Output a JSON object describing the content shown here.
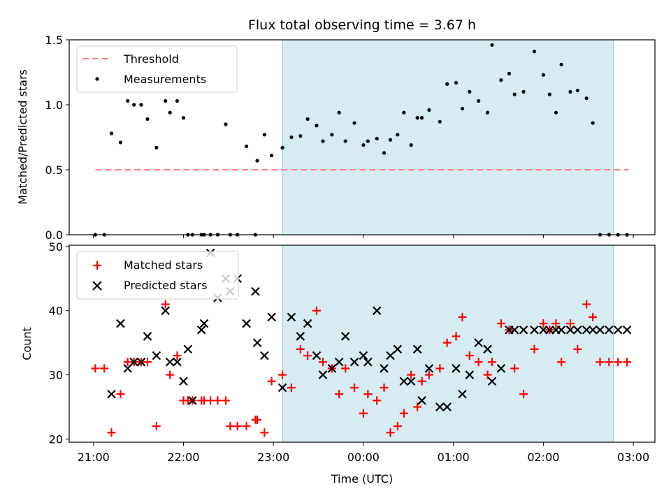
{
  "chart_data": [
    {
      "type": "scatter",
      "title": "Flux total observing time = 3.67 h",
      "ylabel": "Matched/Predicted stars",
      "xlabel": "",
      "xlim": [
        -0.27,
        6.24
      ],
      "ylim": [
        0.0,
        1.5
      ],
      "yticks": [
        0.0,
        0.5,
        1.0,
        1.5
      ],
      "ytick_labels": [
        "0.0",
        "0.5",
        "1.0",
        "1.5"
      ],
      "shaded_span": [
        2.1,
        5.78
      ],
      "legend_position": "upper-left",
      "threshold": {
        "name": "Threshold",
        "value": 0.5,
        "x_range": [
          0.02,
          5.95
        ],
        "color": "#ff7f7f"
      },
      "series": [
        {
          "name": "Measurements",
          "color": "#000000",
          "x": [
            0.02,
            0.12,
            0.2,
            0.3,
            0.38,
            0.45,
            0.53,
            0.6,
            0.7,
            0.8,
            0.85,
            0.93,
            1.0,
            1.05,
            1.1,
            1.2,
            1.23,
            1.3,
            1.38,
            1.47,
            1.52,
            1.6,
            1.7,
            1.8,
            1.82,
            1.9,
            1.98,
            2.1,
            2.2,
            2.3,
            2.38,
            2.48,
            2.55,
            2.65,
            2.73,
            2.8,
            2.9,
            3.0,
            3.05,
            3.15,
            3.23,
            3.3,
            3.38,
            3.45,
            3.53,
            3.6,
            3.65,
            3.73,
            3.85,
            3.93,
            4.03,
            4.1,
            4.18,
            4.28,
            4.38,
            4.43,
            4.53,
            4.62,
            4.68,
            4.78,
            4.9,
            5.0,
            5.07,
            5.14,
            5.2,
            5.3,
            5.38,
            5.48,
            5.55,
            5.63,
            5.73,
            5.83,
            5.93
          ],
          "y": [
            0,
            0,
            0.78,
            0.71,
            1.03,
            1.0,
            1.0,
            0.89,
            0.67,
            1.03,
            0.94,
            1.03,
            0.9,
            0,
            0,
            0,
            0,
            0,
            0,
            0.85,
            0,
            0,
            0.68,
            0,
            0.57,
            0.77,
            0.61,
            0.67,
            0.75,
            0.76,
            0.89,
            0.84,
            0.72,
            0.77,
            0.94,
            0.72,
            0.86,
            0.69,
            0.72,
            0.74,
            0.63,
            0.73,
            0.77,
            0.94,
            0.69,
            0.9,
            0.9,
            0.96,
            0.87,
            1.16,
            1.17,
            0.97,
            1.1,
            1.03,
            0.94,
            1.46,
            1.19,
            1.24,
            1.08,
            1.1,
            1.41,
            1.23,
            1.08,
            0.94,
            1.31,
            1.1,
            1.11,
            1.05,
            0.86,
            0,
            0,
            0,
            0
          ]
        }
      ]
    },
    {
      "type": "scatter",
      "title": "",
      "ylabel": "Count",
      "xlabel": "Time (UTC)",
      "xlim": [
        -0.27,
        6.24
      ],
      "ylim": [
        19.5,
        50.2
      ],
      "yticks": [
        20,
        30,
        40,
        50
      ],
      "ytick_labels": [
        "20",
        "30",
        "40",
        "50"
      ],
      "xticks": [
        0,
        1,
        2,
        3,
        4,
        5,
        6
      ],
      "xtick_labels": [
        "21:00",
        "22:00",
        "23:00",
        "00:00",
        "01:00",
        "02:00",
        "03:00"
      ],
      "shaded_span": [
        2.1,
        5.78
      ],
      "legend_position": "upper-left",
      "series": [
        {
          "name": "Matched stars",
          "color": "#ff0000",
          "marker": "plus",
          "x": [
            0.02,
            0.12,
            0.2,
            0.3,
            0.38,
            0.45,
            0.53,
            0.6,
            0.7,
            0.8,
            0.85,
            0.93,
            1.0,
            1.05,
            1.1,
            1.2,
            1.23,
            1.3,
            1.38,
            1.47,
            1.52,
            1.6,
            1.7,
            1.8,
            1.82,
            1.9,
            1.98,
            2.1,
            2.2,
            2.3,
            2.38,
            2.48,
            2.55,
            2.65,
            2.73,
            2.8,
            2.9,
            3.0,
            3.05,
            3.15,
            3.23,
            3.3,
            3.38,
            3.45,
            3.53,
            3.6,
            3.65,
            3.73,
            3.85,
            3.93,
            4.03,
            4.1,
            4.18,
            4.28,
            4.38,
            4.43,
            4.53,
            4.62,
            4.68,
            4.78,
            4.9,
            5.0,
            5.07,
            5.14,
            5.2,
            5.3,
            5.38,
            5.48,
            5.55,
            5.63,
            5.73,
            5.83,
            5.93
          ],
          "y": [
            31,
            31,
            21,
            27,
            32,
            32,
            32,
            32,
            22,
            41,
            30,
            33,
            26,
            26,
            26,
            26,
            26,
            26,
            26,
            26,
            22,
            22,
            22,
            23,
            23,
            21,
            29,
            30,
            28,
            34,
            33,
            40,
            32,
            31,
            27,
            31,
            28,
            24,
            27,
            26,
            28,
            21,
            22,
            24,
            30,
            25,
            29,
            30,
            31,
            35,
            36,
            39,
            33,
            32,
            30,
            32,
            38,
            37,
            31,
            27,
            34,
            38,
            37,
            38,
            32,
            38,
            34,
            41,
            39,
            32,
            32,
            32,
            32
          ]
        },
        {
          "name": "Predicted stars",
          "color": "#000000",
          "marker": "x",
          "x": [
            0.2,
            0.3,
            0.38,
            0.45,
            0.53,
            0.6,
            0.7,
            0.8,
            0.85,
            0.93,
            1.0,
            1.05,
            1.1,
            1.2,
            1.23,
            1.3,
            1.38,
            1.47,
            1.52,
            1.6,
            1.7,
            1.8,
            1.82,
            1.9,
            1.98,
            2.1,
            2.2,
            2.3,
            2.38,
            2.48,
            2.55,
            2.65,
            2.73,
            2.8,
            2.9,
            3.0,
            3.05,
            3.15,
            3.23,
            3.3,
            3.38,
            3.45,
            3.53,
            3.6,
            3.65,
            3.73,
            3.85,
            3.93,
            4.03,
            4.1,
            4.18,
            4.28,
            4.38,
            4.43,
            4.53,
            4.62,
            4.68,
            4.78,
            4.9,
            5.0,
            5.07,
            5.14,
            5.2,
            5.3,
            5.38,
            5.48,
            5.55,
            5.63,
            5.73,
            5.83,
            5.93
          ],
          "y": [
            27,
            38,
            31,
            32,
            32,
            36,
            33,
            40,
            32,
            32,
            29,
            34,
            26,
            37,
            38,
            49,
            42,
            45,
            43,
            45,
            38,
            43,
            35,
            33,
            39,
            28,
            39,
            36,
            38,
            33,
            30,
            31,
            32,
            36,
            32,
            33,
            32,
            40,
            31,
            33,
            34,
            29,
            29,
            34,
            26,
            31,
            25,
            25,
            31,
            27,
            30,
            35,
            34,
            29,
            31,
            37,
            37,
            37,
            37,
            37,
            37,
            37,
            37,
            37,
            37,
            37,
            37,
            37,
            37,
            37,
            37
          ]
        }
      ]
    }
  ]
}
